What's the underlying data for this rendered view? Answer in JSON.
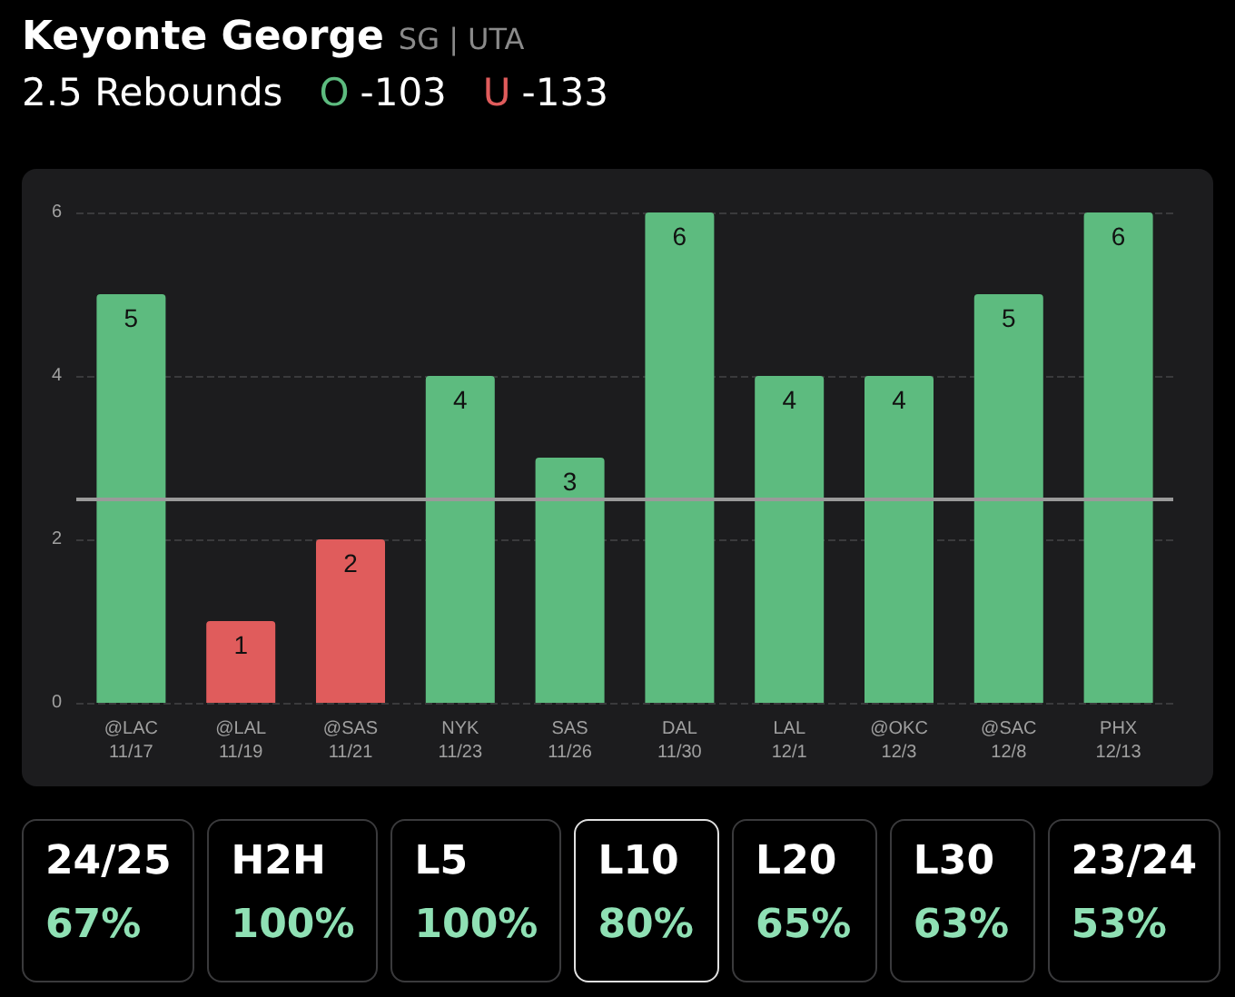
{
  "chart_data": [
    {
      "type": "bar",
      "title": "Keyonte George",
      "subtitle": "SG | UTA",
      "annotations": [
        "2.5 Rebounds",
        "O",
        "-103",
        "U",
        "-133"
      ],
      "categories": [
        "@LAC\n11/17",
        "@LAL\n11/19",
        "@SAS\n11/21",
        "NYK\n11/23",
        "SAS\n11/26",
        "DAL\n11/30",
        "LAL\n12/1",
        "@OKC\n12/3",
        "@SAC\n12/8",
        "PHX\n12/13"
      ],
      "values": [
        5,
        1,
        2,
        4,
        3,
        6,
        4,
        4,
        5,
        6
      ],
      "colors": [
        "#5dbb7f",
        "#e05c5c",
        "#e05c5c",
        "#5dbb7f",
        "#5dbb7f",
        "#5dbb7f",
        "#5dbb7f",
        "#5dbb7f",
        "#5dbb7f",
        "#5dbb7f"
      ],
      "ylim": [
        0,
        6
      ],
      "yticks": [
        0,
        2,
        4,
        6
      ],
      "grid": "y",
      "data_labels": true,
      "ref_lines": [
        {
          "axis": "y",
          "value": 2.5,
          "color": "#9a9a9a"
        }
      ]
    },
    {
      "type": "other",
      "annotations": [
        "24/25",
        "67%",
        "H2H",
        "100%",
        "L5",
        "100%",
        "L10",
        "80%",
        "L20",
        "65%",
        "L30",
        "63%",
        "23/24",
        "53%"
      ]
    }
  ]
}
